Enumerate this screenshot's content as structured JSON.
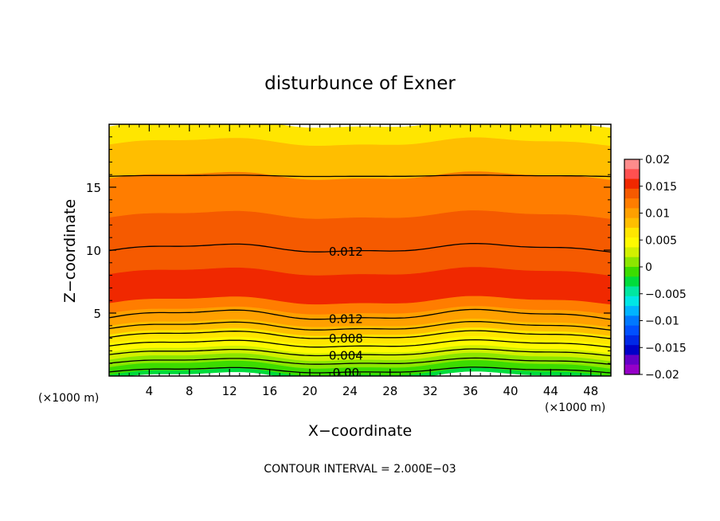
{
  "chart_data": {
    "type": "heatmap",
    "title": "disturbunce of Exner",
    "xlabel": "X−coordinate",
    "ylabel": "Z−coordinate",
    "x_unit_left": "(×1000 m)",
    "x_unit_right": "(×1000 m)",
    "footer": "CONTOUR INTERVAL = 2.000E−03",
    "xlim": [
      0,
      50
    ],
    "ylim": [
      0,
      20
    ],
    "x_ticks": [
      4,
      8,
      12,
      16,
      20,
      24,
      28,
      32,
      36,
      40,
      44,
      48
    ],
    "x_tick_labels": [
      "4",
      "8",
      "12",
      "16",
      "20",
      "24",
      "28",
      "32",
      "36",
      "40",
      "44",
      "48"
    ],
    "y_ticks": [
      5,
      10,
      15
    ],
    "y_tick_labels": [
      "5",
      "10",
      "15"
    ],
    "colorbar": {
      "range": [
        -0.02,
        0.02
      ],
      "tick_values": [
        0.02,
        0.015,
        0.01,
        0.005,
        0,
        -0.005,
        -0.01,
        -0.015,
        -0.02
      ],
      "tick_labels": [
        "0.02",
        "0.015",
        "0.01",
        "0.005",
        "0",
        "−0.005",
        "−0.01",
        "−0.015",
        "−0.02"
      ],
      "colors_top_to_bottom": [
        "#ff8c8c",
        "#ff5050",
        "#f02800",
        "#f55a00",
        "#ff7d00",
        "#ffa000",
        "#ffbe00",
        "#ffe600",
        "#fffa00",
        "#d2f000",
        "#8ce600",
        "#3cdc00",
        "#00dc3c",
        "#00e6a0",
        "#00e6e6",
        "#00b4ff",
        "#0078ff",
        "#0050ff",
        "#0028e6",
        "#0000c8",
        "#6400c8",
        "#9600c8"
      ]
    },
    "bands": [
      {
        "z0": 0.0,
        "z1": 0.3,
        "color": "#00dc3c"
      },
      {
        "z0": 0.3,
        "z1": 0.9,
        "color": "#3cdc00"
      },
      {
        "z0": 0.9,
        "z1": 1.5,
        "color": "#8ce600"
      },
      {
        "z0": 1.5,
        "z1": 2.1,
        "color": "#d2f000"
      },
      {
        "z0": 2.1,
        "z1": 2.8,
        "color": "#fffa00"
      },
      {
        "z0": 2.8,
        "z1": 3.5,
        "color": "#ffe600"
      },
      {
        "z0": 3.5,
        "z1": 4.2,
        "color": "#ffbe00"
      },
      {
        "z0": 4.2,
        "z1": 5.2,
        "color": "#ffa000"
      },
      {
        "z0": 5.2,
        "z1": 6.0,
        "color": "#ff7d00"
      },
      {
        "z0": 6.0,
        "z1": 8.3,
        "color": "#f02800"
      },
      {
        "z0": 8.3,
        "z1": 12.8,
        "color": "#f55a00"
      },
      {
        "z0": 12.8,
        "z1": 15.9,
        "color": "#ff7d00"
      },
      {
        "z0": 15.9,
        "z1": 18.6,
        "color": "#ffbe00"
      },
      {
        "z0": 18.6,
        "z1": 20.0,
        "color": "#ffe600"
      }
    ],
    "contours": [
      {
        "value": "0.000",
        "z": 0.45,
        "amp": 0.2,
        "label": "0.00",
        "label_x": 19.6
      },
      {
        "value": "0.002",
        "z": 1.15,
        "amp": 0.22,
        "label": "",
        "label_x": 0
      },
      {
        "value": "0.004",
        "z": 1.85,
        "amp": 0.24,
        "label": "0.004",
        "label_x": 19.6
      },
      {
        "value": "0.006",
        "z": 2.55,
        "amp": 0.26,
        "label": "",
        "label_x": 0
      },
      {
        "value": "0.008",
        "z": 3.25,
        "amp": 0.28,
        "label": "0.008",
        "label_x": 19.6
      },
      {
        "value": "0.010",
        "z": 3.95,
        "amp": 0.3,
        "label": "",
        "label_x": 0
      },
      {
        "value": "0.012",
        "z": 4.85,
        "amp": 0.35,
        "label": "0.012",
        "label_x": 19.6
      },
      {
        "value": "0.012",
        "z": 10.15,
        "amp": 0.3,
        "label": "0.012",
        "label_x": 19.6
      },
      {
        "value": "0.010",
        "z": 15.9,
        "amp": 0.05,
        "label": "",
        "label_x": 0
      }
    ]
  }
}
